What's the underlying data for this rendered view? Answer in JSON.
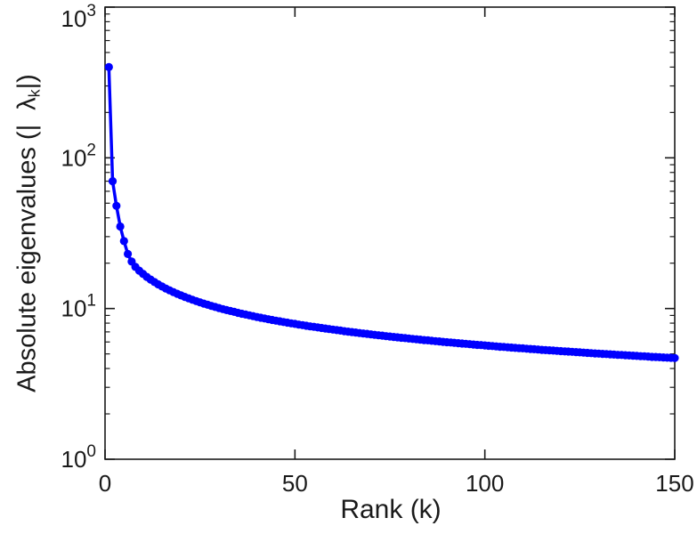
{
  "figure": {
    "background": "#ffffff",
    "axis_color": "#1a1a1a",
    "tick_label_color": "#1a1a1a"
  },
  "chart_data": {
    "type": "line",
    "title": "",
    "xlabel": "Rank (k)",
    "ylabel": "Absolute eigenvalues (|λ_k|)",
    "ylabel_parts": {
      "prefix": "Absolute eigenvalues (|",
      "lambda": "λ",
      "subscript": "k",
      "suffix": "|)"
    },
    "line_color": "#0000ff",
    "marker": "dot",
    "grid": false,
    "legend": null,
    "y_scale": "log",
    "xlim": [
      0,
      150
    ],
    "ylim": [
      1,
      1000
    ],
    "xticks": [
      0,
      50,
      100,
      150
    ],
    "ytick_base": "10",
    "ytick_exponents": [
      0,
      1,
      2,
      3
    ],
    "x_start": 1,
    "x_step": 1,
    "n_points": 150,
    "values": [
      400,
      70,
      48,
      35,
      28,
      23,
      20.5,
      18.88,
      17.85,
      16.98,
      16.23,
      15.57,
      14.99,
      14.47,
      14.01,
      13.58,
      13.2,
      12.85,
      12.52,
      12.22,
      11.94,
      11.68,
      11.43,
      11.2,
      10.99,
      10.79,
      10.6,
      10.41,
      10.24,
      10.08,
      9.92,
      9.77,
      9.63,
      9.5,
      9.37,
      9.24,
      9.12,
      9.01,
      8.9,
      8.79,
      8.69,
      8.59,
      8.49,
      8.4,
      8.31,
      8.23,
      8.14,
      8.06,
      7.98,
      7.91,
      7.83,
      7.76,
      7.69,
      7.62,
      7.56,
      7.49,
      7.43,
      7.37,
      7.31,
      7.25,
      7.19,
      7.14,
      7.08,
      7.03,
      6.98,
      6.93,
      6.88,
      6.83,
      6.79,
      6.74,
      6.69,
      6.65,
      6.61,
      6.56,
      6.52,
      6.48,
      6.44,
      6.4,
      6.36,
      6.32,
      6.29,
      6.25,
      6.22,
      6.18,
      6.15,
      6.11,
      6.08,
      6.05,
      6.01,
      5.98,
      5.95,
      5.92,
      5.89,
      5.86,
      5.83,
      5.8,
      5.77,
      5.74,
      5.72,
      5.69,
      5.66,
      5.64,
      5.61,
      5.58,
      5.56,
      5.53,
      5.51,
      5.48,
      5.46,
      5.44,
      5.41,
      5.39,
      5.37,
      5.35,
      5.32,
      5.3,
      5.28,
      5.26,
      5.24,
      5.22,
      5.2,
      5.18,
      5.16,
      5.14,
      5.12,
      5.1,
      5.08,
      5.06,
      5.04,
      5.02,
      5.0,
      4.99,
      4.97,
      4.95,
      4.93,
      4.92,
      4.9,
      4.88,
      4.87,
      4.85,
      4.83,
      4.82,
      4.8,
      4.78,
      4.77,
      4.75,
      4.74,
      4.72,
      4.71,
      4.69
    ]
  }
}
